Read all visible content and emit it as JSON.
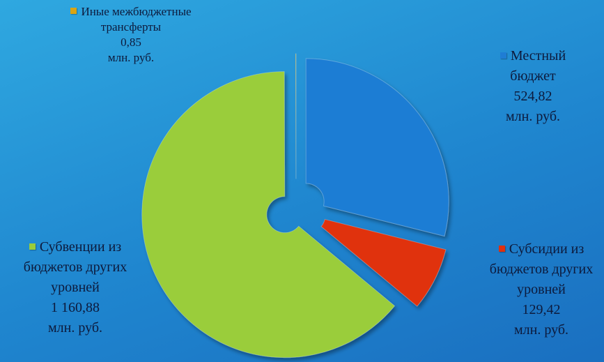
{
  "chart_data": {
    "type": "pie",
    "categories": [
      "Местный бюджет",
      "Субсидии из бюджетов других уровней",
      "Субвенции из бюджетов других уровней",
      "Иные межбюджетные трансферты"
    ],
    "values": [
      524.82,
      129.42,
      1160.88,
      0.85
    ],
    "value_labels": [
      "524,82",
      "129,42",
      "1 160,88",
      "0,85"
    ],
    "unit": "млн. руб.",
    "colors": [
      "#1f7dd4",
      "#e0300f",
      "#9acd3a",
      "#d9a514"
    ]
  }
}
